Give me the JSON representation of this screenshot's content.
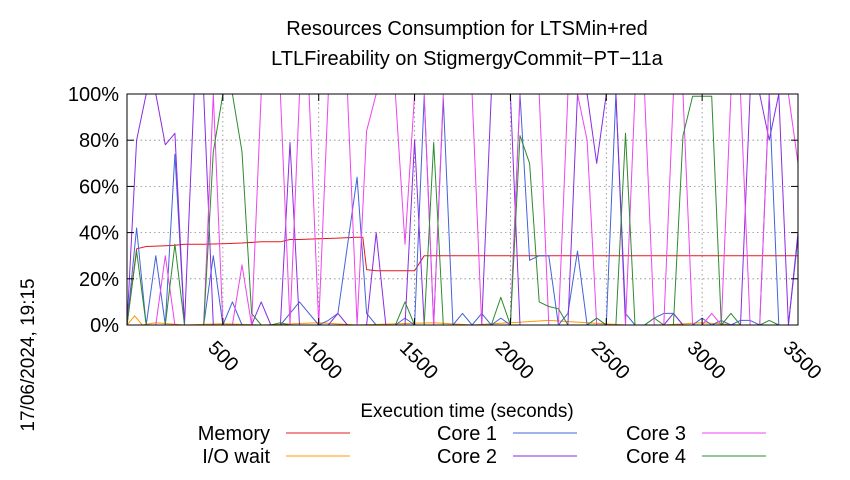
{
  "chart_data": {
    "type": "line",
    "title_lines": [
      "Resources Consumption for LTSMin+red",
      "LTLFireability on StigmergyCommit−PT−11a"
    ],
    "xlabel": "Execution time (seconds)",
    "ylabel": "",
    "xlim": [
      0,
      3500
    ],
    "ylim": [
      0,
      100
    ],
    "x_ticks": [
      500,
      1000,
      1500,
      2000,
      2500,
      3000,
      3500
    ],
    "x_tick_labels": [
      "500",
      "1000",
      "1500",
      "2000",
      "2500",
      "3000",
      "3500"
    ],
    "y_ticks": [
      0,
      20,
      40,
      60,
      80,
      100
    ],
    "y_tick_labels": [
      "0%",
      "20%",
      "40%",
      "60%",
      "80%",
      "100%"
    ],
    "grid": true,
    "legend_placement": "bottom",
    "timestamp": "17/06/2024, 19:15",
    "series": [
      {
        "name": "Memory",
        "color": "#e41a1c",
        "x": [
          0,
          50,
          100,
          200,
          250,
          300,
          400,
          500,
          600,
          700,
          800,
          850,
          900,
          1000,
          1100,
          1200,
          1230,
          1250,
          1300,
          1400,
          1450,
          1500,
          1550,
          1600,
          2000,
          2500,
          3000,
          3500
        ],
        "y": [
          0,
          33,
          34,
          34.3,
          34.5,
          35,
          35,
          35.2,
          35.5,
          36,
          36,
          37,
          37,
          37.3,
          37.6,
          38,
          38,
          24,
          23.5,
          23.5,
          23.5,
          23.5,
          30,
          30,
          30,
          30,
          30,
          30
        ]
      },
      {
        "name": "I/O wait",
        "color": "#ff9900",
        "x": [
          0,
          40,
          80,
          150,
          300,
          500,
          700,
          1000,
          1200,
          1400,
          1600,
          1800,
          2000,
          2200,
          2400,
          2600,
          2800,
          3000,
          3200,
          3500
        ],
        "y": [
          0,
          4,
          0,
          1,
          0,
          0.5,
          0,
          1,
          0,
          0.5,
          1,
          0,
          1,
          2,
          1,
          0,
          0,
          1,
          0,
          0
        ]
      },
      {
        "name": "Core 1",
        "color": "#4363d8",
        "x": [
          0,
          50,
          100,
          150,
          200,
          250,
          300,
          400,
          450,
          500,
          550,
          600,
          700,
          800,
          900,
          1000,
          1050,
          1100,
          1200,
          1250,
          1300,
          1400,
          1450,
          1500,
          1550,
          1600,
          1650,
          1700,
          1750,
          1800,
          1850,
          1900,
          1950,
          2000,
          2050,
          2100,
          2150,
          2200,
          2250,
          2300,
          2350,
          2400,
          2450,
          2500,
          2550,
          2600,
          2650,
          2700,
          2750,
          2800,
          2850,
          2900,
          2950,
          3000,
          3050,
          3100,
          3150,
          3200,
          3250,
          3300,
          3350,
          3400,
          3450,
          3500
        ],
        "y": [
          0,
          42,
          0,
          30,
          0,
          74,
          0,
          0,
          30,
          0,
          10,
          0,
          0,
          0,
          10,
          0,
          2,
          5,
          64,
          5,
          0,
          0,
          3,
          0,
          99,
          0,
          98,
          0,
          5,
          0,
          5,
          0,
          3,
          0,
          100,
          28,
          30,
          30,
          0,
          5,
          32,
          0,
          3,
          0,
          100,
          5,
          0,
          0,
          3,
          5,
          5,
          0,
          0,
          3,
          0,
          2,
          0,
          2,
          2,
          0,
          100,
          0,
          0,
          38
        ]
      },
      {
        "name": "Core 2",
        "color": "#8a2be2",
        "x": [
          0,
          50,
          100,
          150,
          200,
          250,
          300,
          350,
          400,
          450,
          500,
          550,
          600,
          650,
          700,
          750,
          800,
          850,
          900,
          950,
          1000,
          1050,
          1100,
          1150,
          1200,
          1250,
          1300,
          1350,
          1400,
          1450,
          1500,
          1550,
          1600,
          1650,
          1700,
          1750,
          1800,
          1850,
          1900,
          1950,
          2000,
          2050,
          2100,
          2150,
          2200,
          2250,
          2300,
          2350,
          2400,
          2450,
          2500,
          2550,
          2600,
          2650,
          2700,
          2750,
          2800,
          2850,
          2900,
          2950,
          3000,
          3050,
          3100,
          3150,
          3200,
          3250,
          3300,
          3350,
          3400,
          3450,
          3500
        ],
        "y": [
          0,
          80,
          100,
          100,
          78,
          83,
          0,
          100,
          100,
          0,
          0,
          0,
          0,
          0,
          10,
          0,
          0,
          79,
          0,
          0,
          0,
          0,
          5,
          0,
          0,
          0,
          40,
          0,
          0,
          0,
          80,
          0,
          0,
          0,
          0,
          0,
          0,
          0,
          100,
          100,
          100,
          0,
          0,
          0,
          0,
          0,
          0,
          100,
          100,
          70,
          100,
          100,
          0,
          0,
          0,
          0,
          0,
          5,
          0,
          0,
          0,
          0,
          0,
          0,
          0,
          100,
          100,
          80,
          100,
          0,
          40
        ]
      },
      {
        "name": "Core 3",
        "color": "#ee44ee",
        "x": [
          0,
          50,
          100,
          150,
          200,
          250,
          300,
          350,
          400,
          450,
          500,
          550,
          600,
          650,
          700,
          750,
          800,
          850,
          900,
          950,
          1000,
          1050,
          1100,
          1150,
          1200,
          1250,
          1300,
          1350,
          1400,
          1450,
          1500,
          1550,
          1600,
          1650,
          1700,
          1750,
          1800,
          1850,
          1900,
          1950,
          2000,
          2050,
          2100,
          2150,
          2200,
          2250,
          2300,
          2350,
          2400,
          2450,
          2500,
          2550,
          2600,
          2650,
          2700,
          2750,
          2800,
          2850,
          2900,
          2950,
          3000,
          3050,
          3100,
          3150,
          3200,
          3250,
          3300,
          3350,
          3400,
          3450,
          3500
        ],
        "y": [
          0,
          0,
          0,
          0,
          30,
          0,
          0,
          0,
          0,
          100,
          0,
          0,
          26,
          0,
          100,
          100,
          100,
          0,
          100,
          100,
          0,
          100,
          100,
          100,
          0,
          84,
          100,
          100,
          100,
          35,
          100,
          100,
          0,
          100,
          100,
          100,
          100,
          0,
          0,
          0,
          0,
          100,
          100,
          100,
          0,
          0,
          100,
          100,
          80,
          0,
          0,
          0,
          0,
          100,
          100,
          0,
          0,
          100,
          100,
          0,
          0,
          5,
          0,
          100,
          100,
          0,
          0,
          100,
          100,
          100,
          70
        ]
      },
      {
        "name": "Core 4",
        "color": "#2e8b2e",
        "x": [
          0,
          50,
          100,
          150,
          200,
          250,
          300,
          350,
          400,
          450,
          500,
          550,
          600,
          650,
          700,
          750,
          800,
          850,
          900,
          950,
          1000,
          1050,
          1100,
          1150,
          1200,
          1250,
          1300,
          1350,
          1400,
          1450,
          1500,
          1550,
          1600,
          1650,
          1700,
          1750,
          1800,
          1850,
          1900,
          1950,
          2000,
          2050,
          2100,
          2150,
          2200,
          2250,
          2300,
          2350,
          2400,
          2450,
          2500,
          2550,
          2600,
          2650,
          2700,
          2750,
          2800,
          2850,
          2900,
          2950,
          3000,
          3050,
          3100,
          3150,
          3200,
          3250,
          3300,
          3350,
          3400,
          3450,
          3500
        ],
        "y": [
          0,
          32,
          0,
          0,
          0,
          35,
          0,
          0,
          0,
          75,
          100,
          100,
          75,
          5,
          0,
          0,
          1,
          0,
          0,
          0,
          0,
          0,
          0,
          0,
          0,
          0,
          0,
          0,
          0,
          10,
          0,
          0,
          79,
          0,
          0,
          0,
          0,
          0,
          0,
          12,
          0,
          82,
          70,
          10,
          8,
          7,
          0,
          0,
          0,
          3,
          0,
          0,
          83,
          0,
          0,
          3,
          0,
          0,
          82,
          99,
          99,
          99,
          0,
          5,
          0,
          0,
          0,
          2,
          0,
          0,
          0
        ]
      }
    ]
  }
}
